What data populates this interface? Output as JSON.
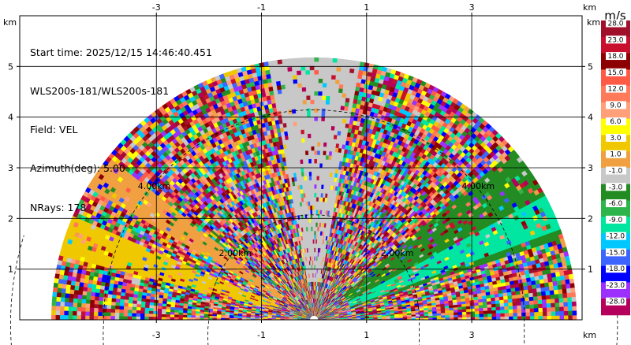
{
  "info": {
    "start_time": "Start time: 2025/12/15 14:46:40.451",
    "instrument": "WLS200s-181/WLS200s-181",
    "field": "Field: VEL",
    "azimuth": "Azimuth(deg): 5.00",
    "nrays": "NRays: 178"
  },
  "chart_data": {
    "type": "heatmap",
    "projection": "RHI half-disc (range-height)",
    "x_unit": "km",
    "y_unit": "km",
    "xlim": [
      -5.6,
      5.1
    ],
    "ylim": [
      0,
      6.0
    ],
    "x_ticks": [
      -3,
      -1,
      1,
      3
    ],
    "y_ticks": [
      1,
      2,
      3,
      4,
      5
    ],
    "max_range_km": 5.0,
    "range_rings": [
      {
        "range_km": 2.0,
        "label": "2.00km"
      },
      {
        "range_km": 4.0,
        "label": "4.00km"
      }
    ],
    "grid": true,
    "colorbar": {
      "title": "m/s",
      "labels": [
        "28.0",
        "23.0",
        "18.0",
        "15.0",
        "12.0",
        "9.0",
        "6.0",
        "3.0",
        "1.0",
        "-1.0",
        "-3.0",
        "-6.0",
        "-9.0",
        "-12.0",
        "-15.0",
        "-18.0",
        "-23.0",
        "-28.0"
      ],
      "colors": [
        "#a0102a",
        "#c8102e",
        "#8c0000",
        "#ff5a46",
        "#ff7a5a",
        "#ffa07a",
        "#ffff00",
        "#f0c800",
        "#f0a040",
        "#c8c8c8",
        "#228b22",
        "#2db44b",
        "#00e6a0",
        "#00c8ff",
        "#3c64ff",
        "#0000ff",
        "#9b30ff",
        "#b4005a"
      ]
    },
    "bands": [
      {
        "az_from_deg": 18,
        "az_to_deg": 40,
        "color": "#228b22"
      },
      {
        "az_from_deg": 20,
        "az_to_deg": 28,
        "color": "#00e6a0"
      },
      {
        "az_from_deg": 142,
        "az_to_deg": 150,
        "color": "#f0a040"
      },
      {
        "az_from_deg": 157,
        "az_to_deg": 166,
        "color": "#f0c800"
      },
      {
        "az_from_deg": 80,
        "az_to_deg": 100,
        "color": "#c8c8c8"
      }
    ]
  }
}
